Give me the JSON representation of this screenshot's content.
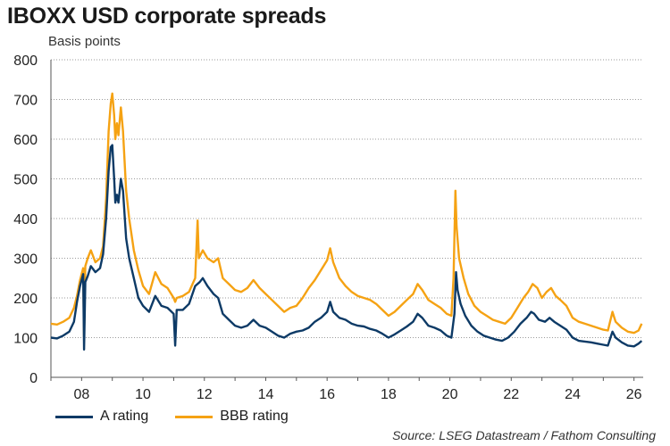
{
  "chart_data": {
    "type": "line",
    "title": "IBOXX USD corporate spreads",
    "subtitle": "Basis points",
    "source": "Source: LSEG Datastream / Fathom Consulting",
    "xlabel": "",
    "ylabel": "Basis points",
    "xlim": [
      2007.0,
      2026.3
    ],
    "ylim": [
      0,
      800
    ],
    "y_ticks": [
      0,
      100,
      200,
      300,
      400,
      500,
      600,
      700,
      800
    ],
    "x_ticks": [
      {
        "value": 2008,
        "label": "08"
      },
      {
        "value": 2010,
        "label": "10"
      },
      {
        "value": 2012,
        "label": "12"
      },
      {
        "value": 2014,
        "label": "14"
      },
      {
        "value": 2016,
        "label": "16"
      },
      {
        "value": 2018,
        "label": "18"
      },
      {
        "value": 2020,
        "label": "20"
      },
      {
        "value": 2022,
        "label": "22"
      },
      {
        "value": 2024,
        "label": "24"
      },
      {
        "value": 2026,
        "label": "26"
      }
    ],
    "grid": "horizontal dotted",
    "legend_position": "bottom-left",
    "series": [
      {
        "name": "A rating",
        "color": "#0d3a66",
        "points": [
          [
            2007.0,
            100
          ],
          [
            2007.2,
            98
          ],
          [
            2007.4,
            105
          ],
          [
            2007.6,
            115
          ],
          [
            2007.75,
            140
          ],
          [
            2007.85,
            190
          ],
          [
            2007.95,
            230
          ],
          [
            2008.05,
            260
          ],
          [
            2008.08,
            70
          ],
          [
            2008.12,
            240
          ],
          [
            2008.2,
            255
          ],
          [
            2008.3,
            280
          ],
          [
            2008.45,
            265
          ],
          [
            2008.6,
            275
          ],
          [
            2008.7,
            310
          ],
          [
            2008.8,
            400
          ],
          [
            2008.88,
            520
          ],
          [
            2008.95,
            580
          ],
          [
            2009.0,
            585
          ],
          [
            2009.06,
            500
          ],
          [
            2009.1,
            440
          ],
          [
            2009.15,
            460
          ],
          [
            2009.2,
            440
          ],
          [
            2009.28,
            500
          ],
          [
            2009.35,
            470
          ],
          [
            2009.45,
            350
          ],
          [
            2009.55,
            300
          ],
          [
            2009.7,
            250
          ],
          [
            2009.85,
            200
          ],
          [
            2010.0,
            180
          ],
          [
            2010.2,
            165
          ],
          [
            2010.4,
            205
          ],
          [
            2010.6,
            180
          ],
          [
            2010.8,
            175
          ],
          [
            2011.0,
            160
          ],
          [
            2011.05,
            80
          ],
          [
            2011.1,
            170
          ],
          [
            2011.3,
            170
          ],
          [
            2011.5,
            185
          ],
          [
            2011.7,
            230
          ],
          [
            2011.85,
            240
          ],
          [
            2011.95,
            250
          ],
          [
            2012.1,
            230
          ],
          [
            2012.3,
            210
          ],
          [
            2012.45,
            200
          ],
          [
            2012.6,
            160
          ],
          [
            2012.8,
            145
          ],
          [
            2013.0,
            130
          ],
          [
            2013.2,
            125
          ],
          [
            2013.4,
            130
          ],
          [
            2013.6,
            145
          ],
          [
            2013.8,
            130
          ],
          [
            2014.0,
            125
          ],
          [
            2014.2,
            115
          ],
          [
            2014.4,
            105
          ],
          [
            2014.6,
            100
          ],
          [
            2014.8,
            110
          ],
          [
            2015.0,
            115
          ],
          [
            2015.2,
            118
          ],
          [
            2015.4,
            125
          ],
          [
            2015.6,
            140
          ],
          [
            2015.8,
            150
          ],
          [
            2016.0,
            165
          ],
          [
            2016.1,
            190
          ],
          [
            2016.2,
            165
          ],
          [
            2016.4,
            150
          ],
          [
            2016.6,
            145
          ],
          [
            2016.8,
            135
          ],
          [
            2017.0,
            130
          ],
          [
            2017.2,
            128
          ],
          [
            2017.4,
            122
          ],
          [
            2017.6,
            118
          ],
          [
            2017.8,
            110
          ],
          [
            2018.0,
            100
          ],
          [
            2018.2,
            108
          ],
          [
            2018.4,
            118
          ],
          [
            2018.6,
            128
          ],
          [
            2018.8,
            140
          ],
          [
            2018.95,
            160
          ],
          [
            2019.1,
            150
          ],
          [
            2019.3,
            130
          ],
          [
            2019.5,
            125
          ],
          [
            2019.7,
            118
          ],
          [
            2019.9,
            105
          ],
          [
            2020.05,
            100
          ],
          [
            2020.15,
            160
          ],
          [
            2020.2,
            265
          ],
          [
            2020.25,
            220
          ],
          [
            2020.35,
            185
          ],
          [
            2020.5,
            155
          ],
          [
            2020.7,
            130
          ],
          [
            2020.9,
            115
          ],
          [
            2021.1,
            105
          ],
          [
            2021.3,
            100
          ],
          [
            2021.5,
            95
          ],
          [
            2021.7,
            92
          ],
          [
            2021.9,
            100
          ],
          [
            2022.1,
            115
          ],
          [
            2022.3,
            135
          ],
          [
            2022.5,
            150
          ],
          [
            2022.65,
            165
          ],
          [
            2022.75,
            160
          ],
          [
            2022.9,
            145
          ],
          [
            2023.1,
            140
          ],
          [
            2023.25,
            150
          ],
          [
            2023.4,
            140
          ],
          [
            2023.6,
            130
          ],
          [
            2023.8,
            120
          ],
          [
            2024.0,
            100
          ],
          [
            2024.2,
            92
          ],
          [
            2024.4,
            90
          ],
          [
            2024.6,
            88
          ],
          [
            2024.8,
            85
          ],
          [
            2025.0,
            82
          ],
          [
            2025.15,
            80
          ],
          [
            2025.3,
            115
          ],
          [
            2025.4,
            100
          ],
          [
            2025.6,
            88
          ],
          [
            2025.8,
            80
          ],
          [
            2026.0,
            78
          ],
          [
            2026.15,
            85
          ],
          [
            2026.25,
            92
          ]
        ]
      },
      {
        "name": "BBB rating",
        "color": "#f5a213",
        "points": [
          [
            2007.0,
            135
          ],
          [
            2007.2,
            133
          ],
          [
            2007.4,
            140
          ],
          [
            2007.6,
            150
          ],
          [
            2007.75,
            175
          ],
          [
            2007.85,
            205
          ],
          [
            2007.95,
            245
          ],
          [
            2008.05,
            275
          ],
          [
            2008.08,
            100
          ],
          [
            2008.12,
            280
          ],
          [
            2008.2,
            300
          ],
          [
            2008.3,
            320
          ],
          [
            2008.45,
            290
          ],
          [
            2008.6,
            300
          ],
          [
            2008.7,
            330
          ],
          [
            2008.8,
            450
          ],
          [
            2008.88,
            620
          ],
          [
            2008.95,
            690
          ],
          [
            2009.0,
            715
          ],
          [
            2009.06,
            660
          ],
          [
            2009.1,
            600
          ],
          [
            2009.15,
            640
          ],
          [
            2009.2,
            610
          ],
          [
            2009.28,
            680
          ],
          [
            2009.35,
            620
          ],
          [
            2009.45,
            470
          ],
          [
            2009.55,
            400
          ],
          [
            2009.7,
            320
          ],
          [
            2009.85,
            270
          ],
          [
            2010.0,
            230
          ],
          [
            2010.2,
            210
          ],
          [
            2010.4,
            265
          ],
          [
            2010.6,
            235
          ],
          [
            2010.8,
            225
          ],
          [
            2011.0,
            200
          ],
          [
            2011.05,
            190
          ],
          [
            2011.1,
            200
          ],
          [
            2011.3,
            205
          ],
          [
            2011.5,
            215
          ],
          [
            2011.7,
            250
          ],
          [
            2011.78,
            395
          ],
          [
            2011.82,
            300
          ],
          [
            2011.95,
            320
          ],
          [
            2012.1,
            300
          ],
          [
            2012.3,
            290
          ],
          [
            2012.45,
            300
          ],
          [
            2012.6,
            250
          ],
          [
            2012.8,
            235
          ],
          [
            2013.0,
            220
          ],
          [
            2013.2,
            215
          ],
          [
            2013.4,
            225
          ],
          [
            2013.6,
            245
          ],
          [
            2013.8,
            225
          ],
          [
            2014.0,
            210
          ],
          [
            2014.2,
            195
          ],
          [
            2014.4,
            180
          ],
          [
            2014.6,
            165
          ],
          [
            2014.8,
            175
          ],
          [
            2015.0,
            180
          ],
          [
            2015.2,
            200
          ],
          [
            2015.4,
            225
          ],
          [
            2015.6,
            245
          ],
          [
            2015.8,
            270
          ],
          [
            2016.0,
            295
          ],
          [
            2016.1,
            325
          ],
          [
            2016.2,
            290
          ],
          [
            2016.4,
            250
          ],
          [
            2016.6,
            230
          ],
          [
            2016.8,
            215
          ],
          [
            2017.0,
            205
          ],
          [
            2017.2,
            200
          ],
          [
            2017.4,
            195
          ],
          [
            2017.6,
            185
          ],
          [
            2017.8,
            170
          ],
          [
            2018.0,
            155
          ],
          [
            2018.2,
            165
          ],
          [
            2018.4,
            180
          ],
          [
            2018.6,
            195
          ],
          [
            2018.8,
            210
          ],
          [
            2018.95,
            235
          ],
          [
            2019.1,
            220
          ],
          [
            2019.3,
            195
          ],
          [
            2019.5,
            185
          ],
          [
            2019.7,
            175
          ],
          [
            2019.9,
            160
          ],
          [
            2020.05,
            155
          ],
          [
            2020.12,
            250
          ],
          [
            2020.18,
            470
          ],
          [
            2020.22,
            380
          ],
          [
            2020.3,
            300
          ],
          [
            2020.45,
            250
          ],
          [
            2020.6,
            210
          ],
          [
            2020.8,
            180
          ],
          [
            2021.0,
            165
          ],
          [
            2021.2,
            155
          ],
          [
            2021.4,
            145
          ],
          [
            2021.6,
            140
          ],
          [
            2021.8,
            135
          ],
          [
            2022.0,
            150
          ],
          [
            2022.2,
            175
          ],
          [
            2022.4,
            200
          ],
          [
            2022.55,
            215
          ],
          [
            2022.7,
            235
          ],
          [
            2022.85,
            225
          ],
          [
            2023.0,
            200
          ],
          [
            2023.15,
            215
          ],
          [
            2023.3,
            225
          ],
          [
            2023.45,
            205
          ],
          [
            2023.6,
            195
          ],
          [
            2023.8,
            180
          ],
          [
            2024.0,
            150
          ],
          [
            2024.2,
            140
          ],
          [
            2024.4,
            135
          ],
          [
            2024.6,
            130
          ],
          [
            2024.8,
            125
          ],
          [
            2025.0,
            120
          ],
          [
            2025.15,
            118
          ],
          [
            2025.3,
            165
          ],
          [
            2025.4,
            140
          ],
          [
            2025.6,
            125
          ],
          [
            2025.8,
            115
          ],
          [
            2026.0,
            112
          ],
          [
            2026.15,
            118
          ],
          [
            2026.25,
            135
          ]
        ]
      }
    ]
  }
}
